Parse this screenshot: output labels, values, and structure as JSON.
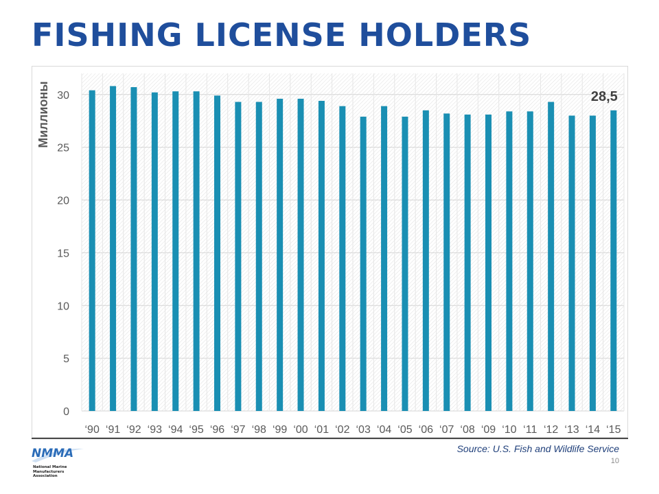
{
  "page": {
    "title": "FISHING LICENSE HOLDERS",
    "source": "Source: U.S. Fish and Wildlife Service",
    "page_number": "10",
    "logo_text": "NMMA",
    "logo_subtext": "National Marine Manufacturers Association"
  },
  "colors": {
    "title": "#1f4e9c",
    "bar": "#1a8fb3",
    "source": "#1f3f7a"
  },
  "chart_data": {
    "type": "bar",
    "title": "",
    "xlabel": "",
    "ylabel": "Миллионы",
    "categories": [
      "‘90",
      "‘91",
      "‘92",
      "‘93",
      "‘94",
      "‘95",
      "‘96",
      "‘97",
      "‘98",
      "‘99",
      "‘00",
      "‘01",
      "‘02",
      "‘03",
      "‘04",
      "‘05",
      "‘06",
      "‘07",
      "‘08",
      "‘09",
      "‘10",
      "‘11",
      "‘12",
      "‘13",
      "‘14",
      "‘15"
    ],
    "values": [
      30.4,
      30.8,
      30.7,
      30.2,
      30.3,
      30.3,
      29.9,
      29.3,
      29.3,
      29.6,
      29.6,
      29.4,
      28.9,
      27.9,
      28.9,
      27.9,
      28.5,
      28.2,
      28.1,
      28.1,
      28.4,
      28.4,
      29.3,
      28.0,
      28.0,
      28.5
    ],
    "ylim": [
      0,
      32
    ],
    "yticks": [
      0,
      5,
      10,
      15,
      20,
      25,
      30
    ],
    "grid": true,
    "legend": "none",
    "annotations": [
      {
        "category": "‘15",
        "text": "28,5"
      }
    ]
  }
}
